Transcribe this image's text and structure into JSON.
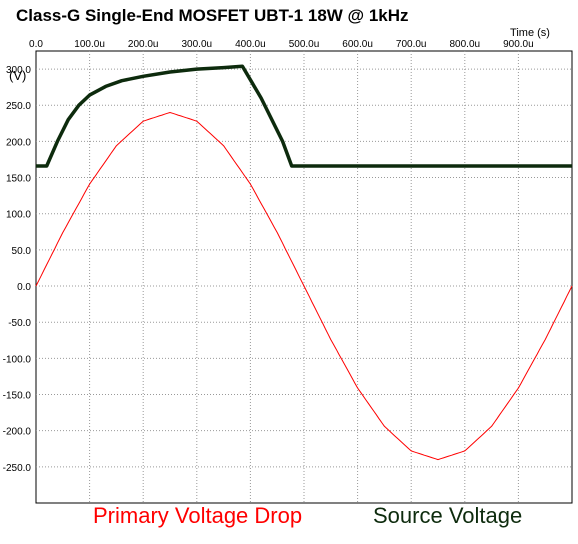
{
  "chart_data": {
    "type": "line",
    "title": "Class-G Single-End MOSFET UBT-1 18W @ 1kHz",
    "xlabel": "Time  (s)",
    "ylabel": "(V)",
    "xlim": [
      0,
      1000
    ],
    "ylim": [
      -300,
      325
    ],
    "x_ticks": [
      "0.0",
      "100.0u",
      "200.0u",
      "300.0u",
      "400.0u",
      "500.0u",
      "600.0u",
      "700.0u",
      "800.0u",
      "900.0u"
    ],
    "y_ticks": [
      "300.0",
      "250.0",
      "200.0",
      "150.0",
      "100.0",
      "50.0",
      "0.0",
      "-50.0",
      "-100.0",
      "-150.0",
      "-200.0",
      "-250.0"
    ],
    "grid": true,
    "legend_position": "bottom",
    "series": [
      {
        "name": "Primary Voltage Drop",
        "color": "#ff0000",
        "x": [
          0,
          50,
          100,
          150,
          200,
          250,
          300,
          350,
          400,
          450,
          500,
          550,
          600,
          650,
          700,
          750,
          800,
          850,
          900,
          950,
          1000
        ],
        "y": [
          0,
          74,
          141,
          194,
          228,
          240,
          228,
          194,
          141,
          74,
          0,
          -74,
          -141,
          -194,
          -228,
          -240,
          -228,
          -194,
          -141,
          -74,
          0
        ]
      },
      {
        "name": "Source Voltage",
        "color": "#0d2b0d",
        "x": [
          0,
          20,
          40,
          60,
          80,
          100,
          130,
          160,
          200,
          250,
          300,
          350,
          385,
          420,
          460,
          477,
          550,
          650,
          750,
          850,
          950,
          1000
        ],
        "y": [
          166,
          166,
          200,
          230,
          250,
          264,
          276,
          284,
          290,
          296,
          300,
          302,
          304,
          260,
          200,
          166,
          166,
          166,
          166,
          166,
          166,
          166
        ]
      }
    ]
  }
}
